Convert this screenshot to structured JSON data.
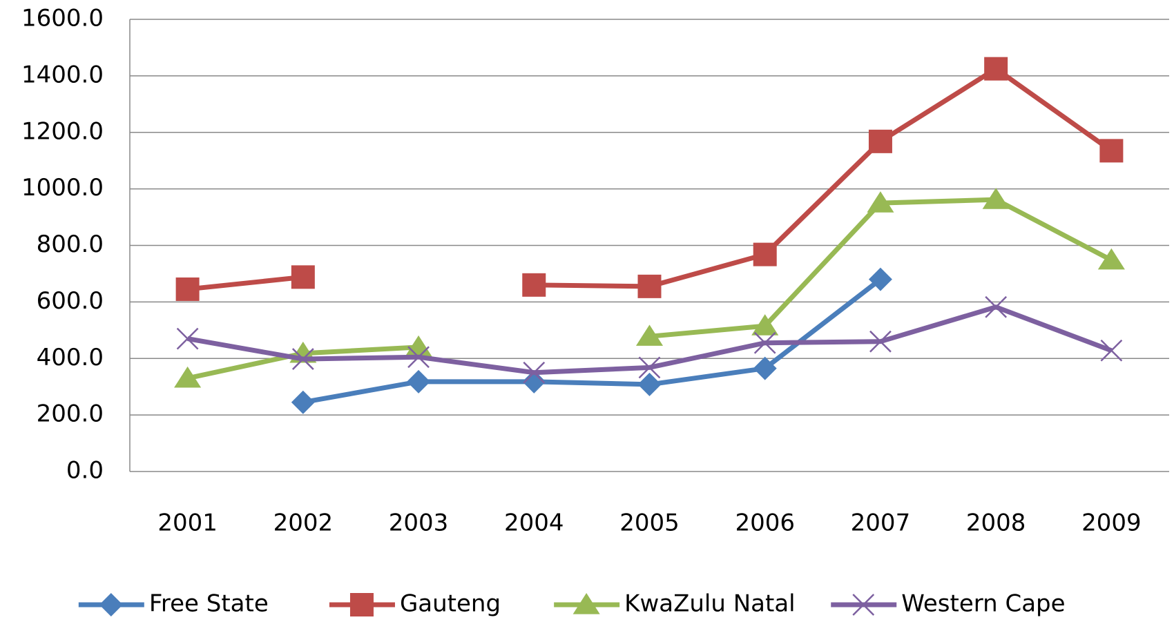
{
  "chart_data": {
    "type": "line",
    "categories": [
      "2001",
      "2002",
      "2003",
      "2004",
      "2005",
      "2006",
      "2007",
      "2008",
      "2009"
    ],
    "series": [
      {
        "name": "Free State",
        "color": "#4a7ebb",
        "marker": "diamond",
        "values": [
          null,
          245,
          318,
          318,
          308,
          365,
          680,
          null,
          null
        ]
      },
      {
        "name": "Gauteng",
        "color": "#be4b48",
        "marker": "square",
        "values": [
          645,
          688,
          null,
          660,
          655,
          768,
          1168,
          1425,
          1135
        ]
      },
      {
        "name": "KwaZulu Natal",
        "color": "#98b954",
        "marker": "triangle",
        "values": [
          330,
          418,
          440,
          null,
          478,
          515,
          950,
          962,
          748
        ]
      },
      {
        "name": "Western Cape",
        "color": "#7d60a0",
        "marker": "x",
        "values": [
          470,
          398,
          405,
          350,
          368,
          455,
          460,
          582,
          428
        ]
      }
    ],
    "ylim": [
      0,
      1600
    ],
    "yticks": [
      {
        "value": 0,
        "label": "0.0"
      },
      {
        "value": 200,
        "label": "200.0"
      },
      {
        "value": 400,
        "label": "400.0"
      },
      {
        "value": 600,
        "label": "600.0"
      },
      {
        "value": 800,
        "label": "800.0"
      },
      {
        "value": 1000,
        "label": "1000.0"
      },
      {
        "value": 1200,
        "label": "1200.0"
      },
      {
        "value": 1400,
        "label": "1400.0"
      },
      {
        "value": 1600,
        "label": "1600.0"
      }
    ],
    "grid": true,
    "legend": "bottom"
  }
}
